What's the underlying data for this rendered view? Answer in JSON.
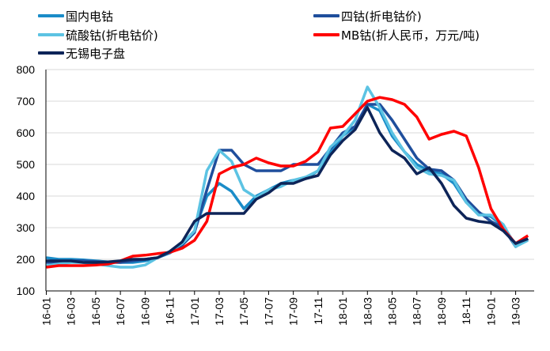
{
  "chart_data": {
    "type": "line",
    "title": "",
    "xlabel": "",
    "ylabel": "",
    "ylim": [
      100,
      800
    ],
    "yticks": [
      100,
      200,
      300,
      400,
      500,
      600,
      700,
      800
    ],
    "xlim": [
      "16-01",
      "19-04"
    ],
    "xticks": [
      "16-01",
      "16-03",
      "16-05",
      "16-07",
      "16-09",
      "16-11",
      "17-01",
      "17-03",
      "17-05",
      "17-07",
      "17-09",
      "17-11",
      "18-01",
      "18-03",
      "18-05",
      "18-07",
      "18-09",
      "18-11",
      "19-01",
      "19-03"
    ],
    "grid": "horizontal",
    "legend_position": "top",
    "x": [
      "16-01",
      "16-02",
      "16-03",
      "16-04",
      "16-05",
      "16-06",
      "16-07",
      "16-08",
      "16-09",
      "16-10",
      "16-11",
      "16-12",
      "17-01",
      "17-02",
      "17-03",
      "17-04",
      "17-05",
      "17-06",
      "17-07",
      "17-08",
      "17-09",
      "17-10",
      "17-11",
      "17-12",
      "18-01",
      "18-02",
      "18-03",
      "18-04",
      "18-05",
      "18-06",
      "18-07",
      "18-08",
      "18-09",
      "18-10",
      "18-11",
      "18-12",
      "19-01",
      "19-02",
      "19-03",
      "19-04"
    ],
    "series": [
      {
        "name": "国内电钴",
        "color": "#1a8cc8",
        "values": [
          205,
          200,
          200,
          198,
          195,
          192,
          190,
          190,
          195,
          205,
          220,
          245,
          290,
          400,
          440,
          415,
          360,
          400,
          420,
          440,
          450,
          455,
          480,
          540,
          590,
          620,
          690,
          670,
          590,
          540,
          500,
          480,
          470,
          440,
          380,
          345,
          335,
          305,
          245,
          265
        ]
      },
      {
        "name": "四钴(折电钴价)",
        "color": "#1f4e9c",
        "values": [
          190,
          190,
          195,
          195,
          193,
          190,
          190,
          195,
          200,
          205,
          222,
          245,
          285,
          420,
          545,
          545,
          500,
          480,
          480,
          480,
          500,
          500,
          500,
          550,
          600,
          620,
          690,
          690,
          640,
          580,
          520,
          485,
          480,
          450,
          390,
          350,
          320,
          300,
          240,
          265
        ]
      },
      {
        "name": "硫酸钴(折电钴价)",
        "color": "#5cc3e3",
        "values": [
          180,
          185,
          190,
          190,
          185,
          180,
          175,
          175,
          182,
          205,
          225,
          250,
          290,
          480,
          545,
          510,
          420,
          395,
          420,
          430,
          450,
          460,
          480,
          555,
          590,
          640,
          745,
          680,
          600,
          540,
          490,
          470,
          465,
          450,
          380,
          340,
          340,
          310,
          240,
          260
        ]
      },
      {
        "name": "MB钴(折人民币，万元/吨)",
        "color": "#ff0000",
        "values": [
          175,
          180,
          180,
          180,
          182,
          185,
          195,
          210,
          213,
          218,
          222,
          235,
          260,
          320,
          470,
          490,
          500,
          520,
          505,
          495,
          495,
          510,
          540,
          615,
          620,
          660,
          700,
          712,
          705,
          690,
          650,
          580,
          595,
          605,
          590,
          490,
          360,
          295,
          250,
          275
        ]
      },
      {
        "name": "无锡电子盘",
        "color": "#0d2458",
        "values": [
          195,
          195,
          195,
          190,
          190,
          192,
          195,
          200,
          200,
          205,
          225,
          255,
          320,
          345,
          345,
          345,
          345,
          390,
          410,
          440,
          440,
          455,
          465,
          530,
          575,
          610,
          680,
          600,
          545,
          520,
          470,
          490,
          440,
          370,
          330,
          320,
          315,
          290,
          250,
          265
        ]
      }
    ]
  }
}
